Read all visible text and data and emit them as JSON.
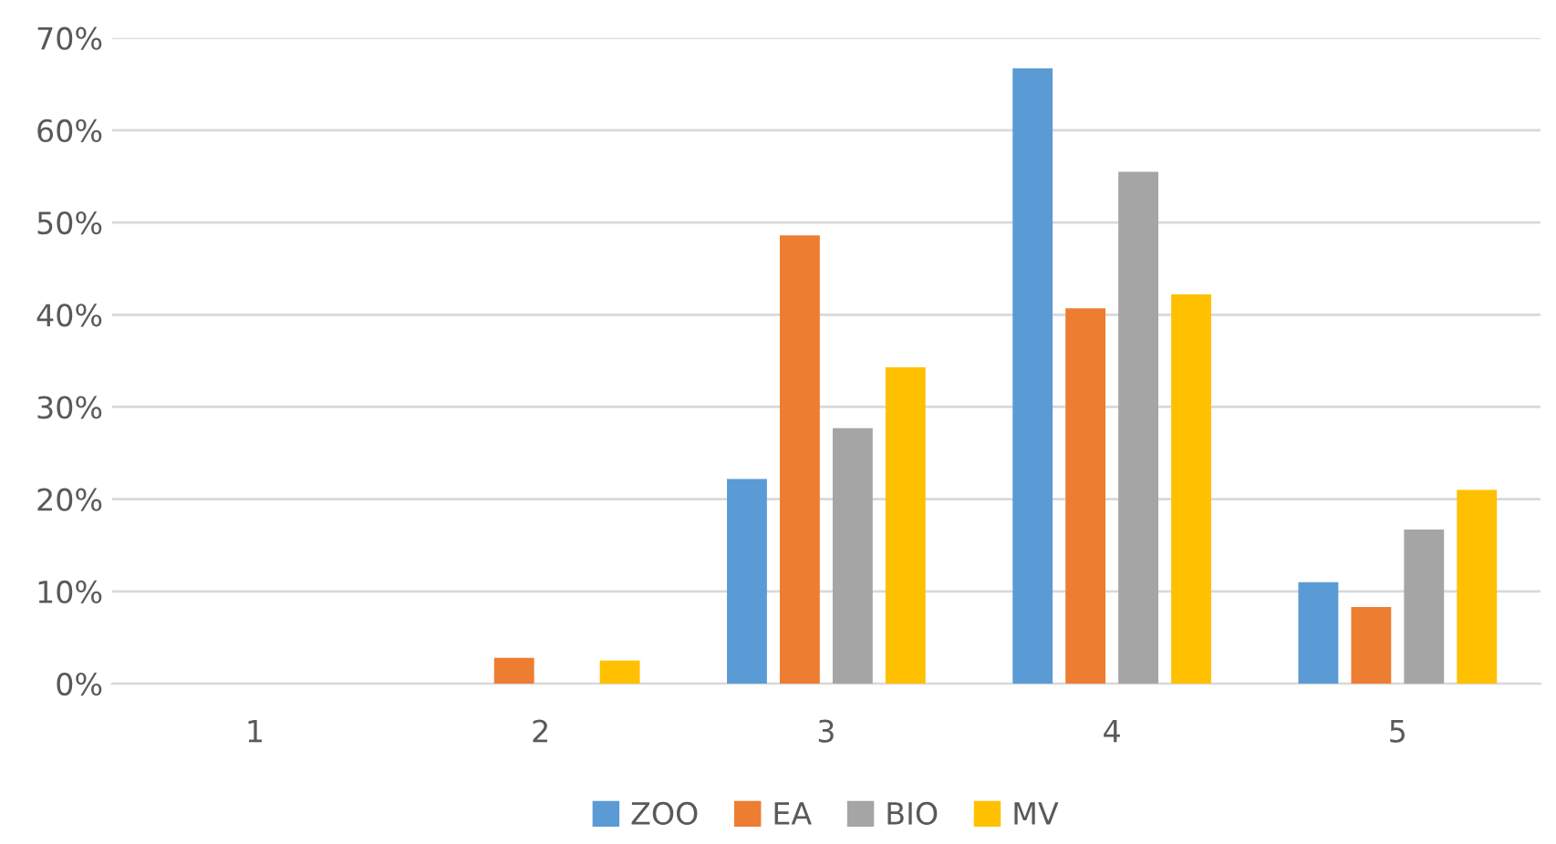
{
  "chart_data": {
    "type": "bar",
    "categories": [
      "1",
      "2",
      "3",
      "4",
      "5"
    ],
    "series": [
      {
        "name": "ZOO",
        "color": "#5b9bd5",
        "values": [
          0,
          0,
          22.2,
          66.7,
          11.0
        ]
      },
      {
        "name": "EA",
        "color": "#ed7d31",
        "values": [
          0,
          2.8,
          48.6,
          40.7,
          8.3
        ]
      },
      {
        "name": "BIO",
        "color": "#a5a5a5",
        "values": [
          0,
          0,
          27.7,
          55.5,
          16.7
        ]
      },
      {
        "name": "MV",
        "color": "#ffc000",
        "values": [
          0,
          2.5,
          34.3,
          42.2,
          21.0
        ]
      }
    ],
    "ylim": [
      0,
      70
    ],
    "yticks": [
      {
        "value": 0,
        "label": "0%"
      },
      {
        "value": 10,
        "label": "10%"
      },
      {
        "value": 20,
        "label": "20%"
      },
      {
        "value": 30,
        "label": "30%"
      },
      {
        "value": 40,
        "label": "40%"
      },
      {
        "value": 50,
        "label": "50%"
      },
      {
        "value": 60,
        "label": "60%"
      },
      {
        "value": 70,
        "label": "70%"
      }
    ],
    "grid": "y",
    "legend": "bottom"
  }
}
